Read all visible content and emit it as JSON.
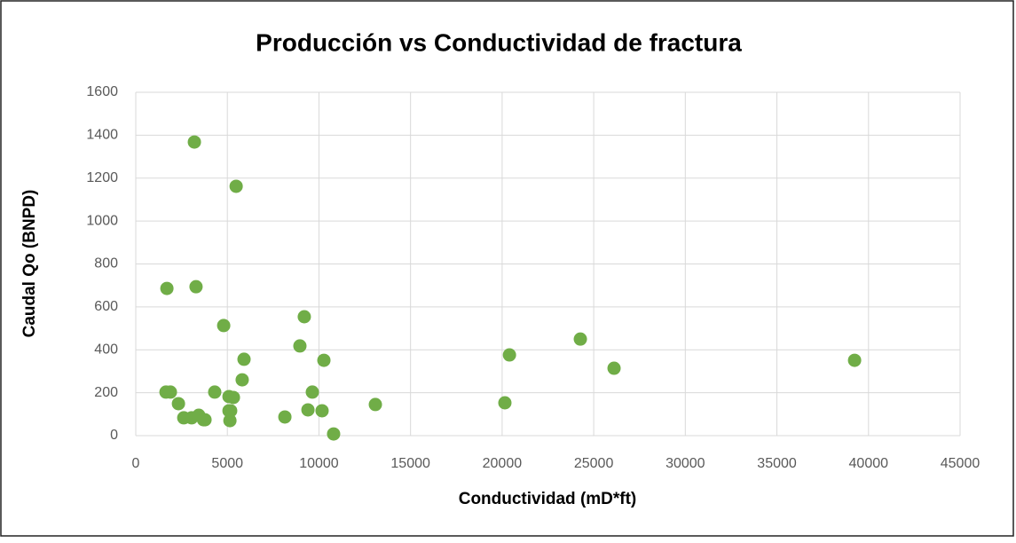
{
  "chart_data": {
    "type": "scatter",
    "title": "Producción vs Conductividad de fractura",
    "xlabel": "Conductividad  (mD*ft)",
    "ylabel": "Caudal Qo (BNPD)",
    "series": [
      {
        "color": "#70ad47",
        "x": [
          3200,
          5480,
          1700,
          3290,
          4800,
          9200,
          8960,
          5910,
          10270,
          20400,
          24270,
          26110,
          39240,
          5810,
          1650,
          1890,
          4310,
          9640,
          5090,
          5330,
          2330,
          13080,
          20150,
          5090,
          5180,
          9400,
          10170,
          8140,
          2620,
          3050,
          3440,
          3780,
          3700,
          5140,
          10800
        ],
        "values": [
          1368,
          1162,
          686,
          694,
          513,
          554,
          418,
          356,
          351,
          376,
          450,
          314,
          351,
          260,
          203,
          203,
          203,
          203,
          182,
          178,
          149,
          145,
          153,
          116,
          116,
          120,
          116,
          87,
          83,
          83,
          95,
          74,
          74,
          70,
          8
        ]
      }
    ],
    "xlim": [
      0,
      45000
    ],
    "xticks": [
      0,
      5000,
      10000,
      15000,
      20000,
      25000,
      30000,
      35000,
      40000,
      45000
    ],
    "ylim": [
      0,
      1600
    ],
    "yticks": [
      0,
      200,
      400,
      600,
      800,
      1000,
      1200,
      1400,
      1600
    ],
    "grid": true
  }
}
